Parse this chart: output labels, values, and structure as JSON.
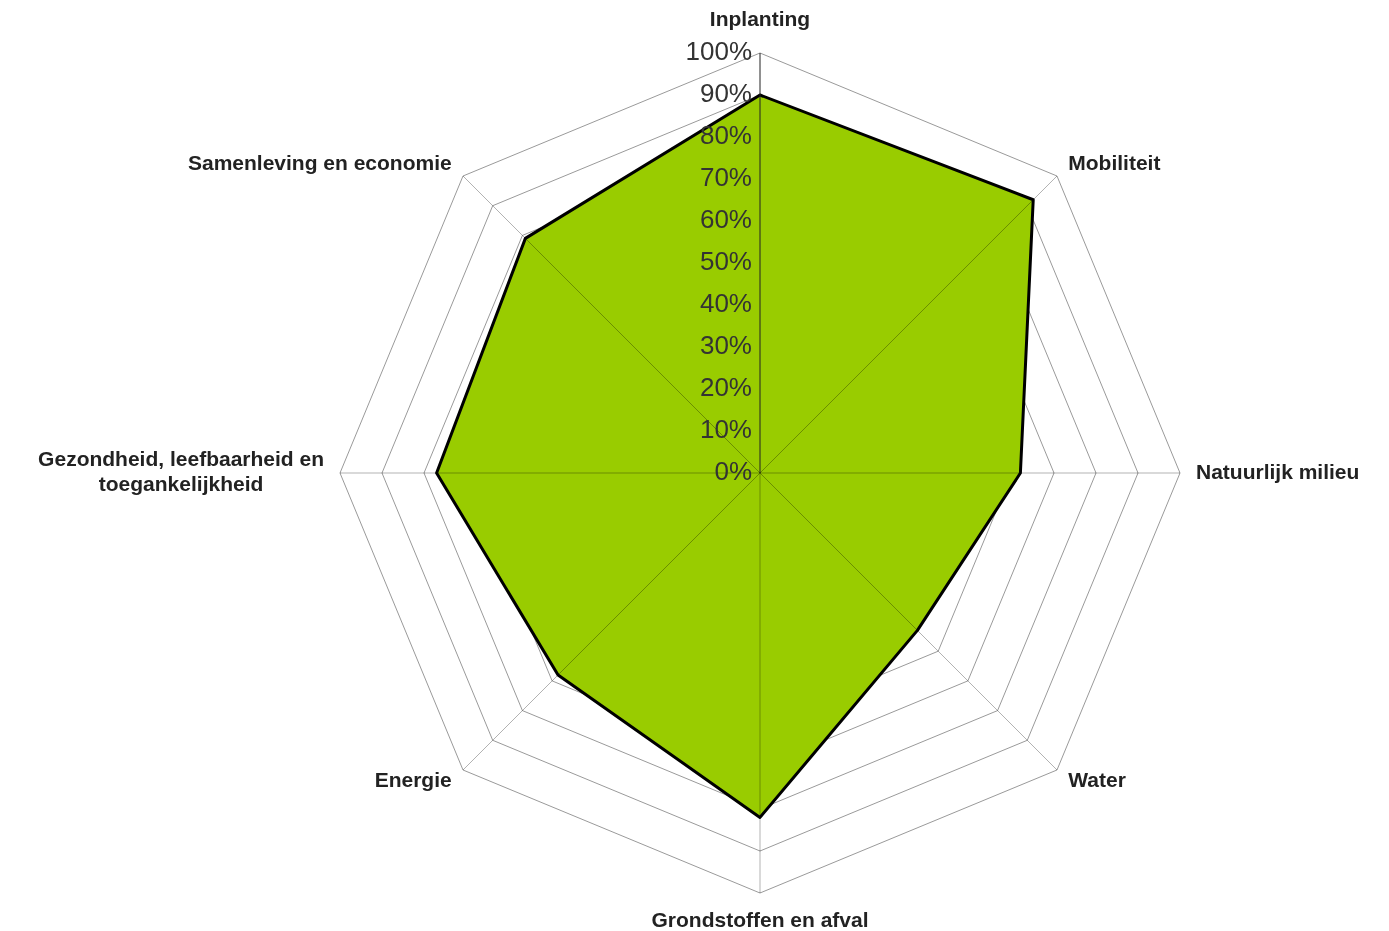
{
  "chart_data": {
    "type": "radar",
    "categories": [
      "Inplanting",
      "Mobiliteit",
      "Natuurlijk milieu",
      "Water",
      "Grondstoffen en afval",
      "Energie",
      "Gezondheid, leefbaarheid en toegankelijkheid",
      "Samenleving en economie"
    ],
    "series": [
      {
        "color": "#99cc00",
        "values": [
          90,
          92,
          62,
          53,
          82,
          68,
          77,
          79
        ]
      }
    ],
    "ylim": [
      0,
      100
    ],
    "yticks": [
      {
        "value": 0,
        "label": "0%"
      },
      {
        "value": 10,
        "label": "10%"
      },
      {
        "value": 20,
        "label": "20%"
      },
      {
        "value": 30,
        "label": "30%"
      },
      {
        "value": 40,
        "label": "40%"
      },
      {
        "value": 50,
        "label": "50%"
      },
      {
        "value": 60,
        "label": "60%"
      },
      {
        "value": 70,
        "label": "70%"
      },
      {
        "value": 80,
        "label": "80%"
      },
      {
        "value": 90,
        "label": "90%"
      },
      {
        "value": 100,
        "label": "100%"
      }
    ],
    "grid": true
  }
}
